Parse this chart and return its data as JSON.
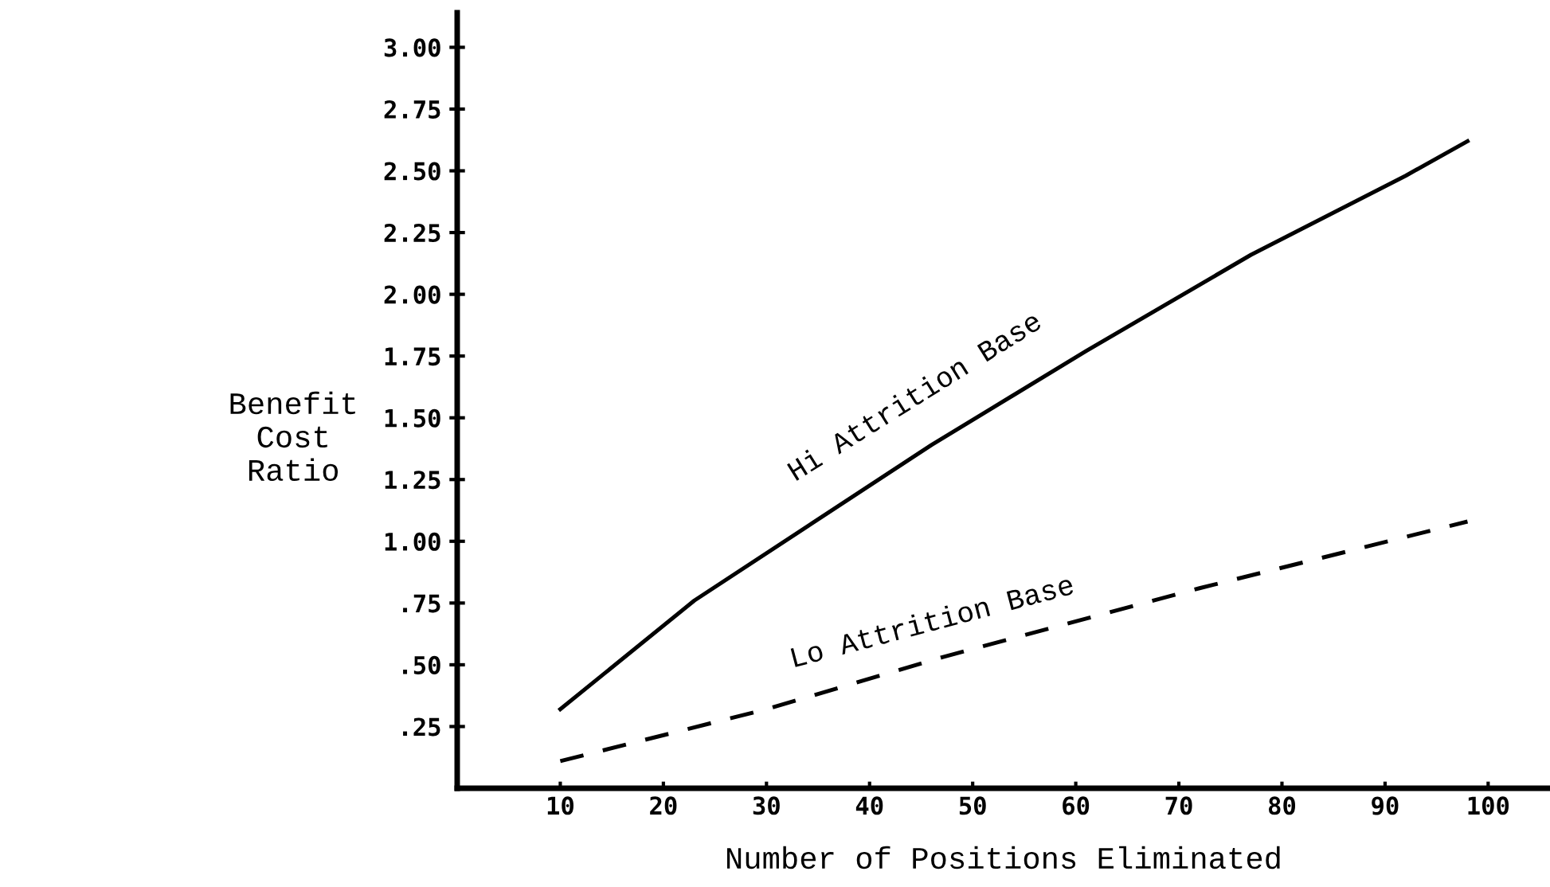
{
  "chart_data": {
    "type": "line",
    "xlabel": "Number of Positions Eliminated",
    "ylabel": "Benefit\nCost\nRatio",
    "xlim": [
      0,
      106
    ],
    "ylim": [
      0,
      3.14
    ],
    "xticks": [
      10,
      20,
      30,
      40,
      50,
      60,
      70,
      80,
      90,
      100
    ],
    "yticks": [
      {
        "value": 0.25,
        "label": ".25"
      },
      {
        "value": 0.5,
        "label": ".50"
      },
      {
        "value": 0.75,
        "label": ".75"
      },
      {
        "value": 1.0,
        "label": "1.00"
      },
      {
        "value": 1.25,
        "label": "1.25"
      },
      {
        "value": 1.5,
        "label": "1.50"
      },
      {
        "value": 1.75,
        "label": "1.75"
      },
      {
        "value": 2.0,
        "label": "2.00"
      },
      {
        "value": 2.25,
        "label": "2.25"
      },
      {
        "value": 2.5,
        "label": "2.50"
      },
      {
        "value": 2.75,
        "label": "2.75"
      },
      {
        "value": 3.0,
        "label": "3.00"
      }
    ],
    "grid": false,
    "legend": false,
    "marker": "none",
    "series": [
      {
        "name": "Hi Attrition Base",
        "color": "#000000",
        "line_style": "solid",
        "x": [
          10,
          23,
          46,
          61,
          77,
          92,
          98
        ],
        "values": [
          0.32,
          0.76,
          1.39,
          1.77,
          2.16,
          2.48,
          2.62
        ]
      },
      {
        "name": "Lo Attrition Base",
        "color": "#000000",
        "line_style": "dashed",
        "x": [
          10,
          30,
          47,
          72,
          98
        ],
        "values": [
          0.11,
          0.32,
          0.53,
          0.81,
          1.08
        ]
      }
    ]
  }
}
